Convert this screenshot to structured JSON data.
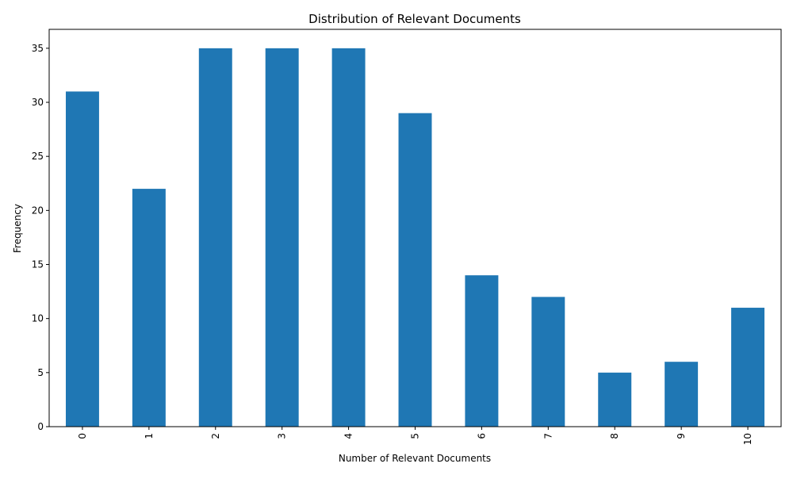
{
  "chart_data": {
    "type": "bar",
    "title": "Distribution of Relevant Documents",
    "xlabel": "Number of Relevant Documents",
    "ylabel": "Frequency",
    "categories": [
      "0",
      "1",
      "2",
      "3",
      "4",
      "5",
      "6",
      "7",
      "8",
      "9",
      "10"
    ],
    "values": [
      31,
      22,
      35,
      35,
      35,
      29,
      14,
      12,
      5,
      6,
      11
    ],
    "ylim": [
      0,
      36.75
    ],
    "yticks": [
      0,
      5,
      10,
      15,
      20,
      25,
      30,
      35
    ],
    "grid": false,
    "legend": "none",
    "colors": {
      "bar": "#1f77b4",
      "axis": "#000000",
      "background": "#ffffff"
    }
  }
}
